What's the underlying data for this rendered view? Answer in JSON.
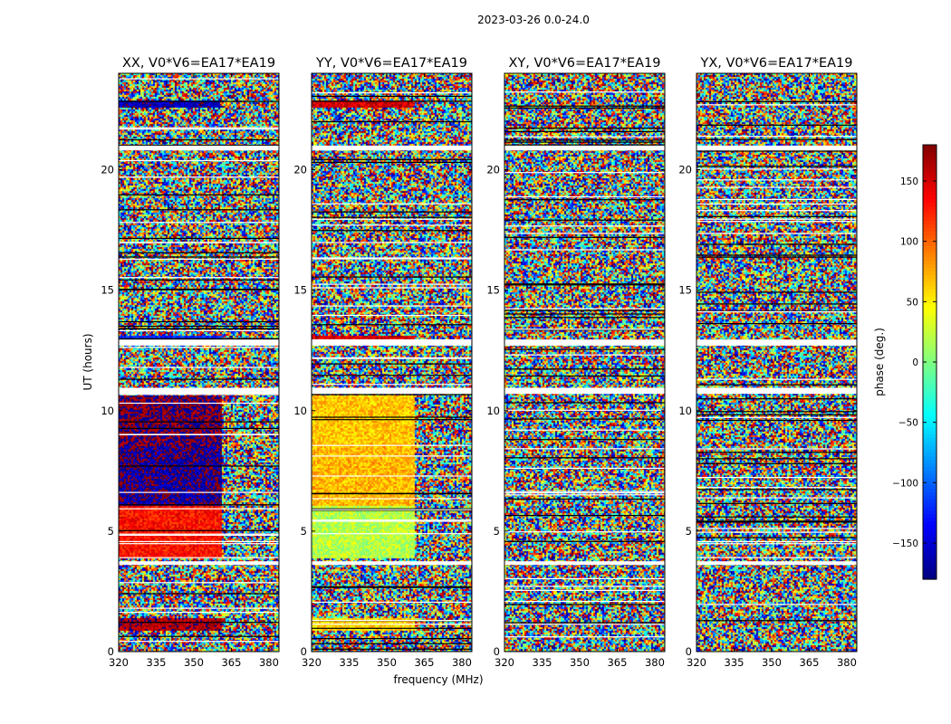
{
  "figure": {
    "suptitle": "2023-03-26 0.0-24.0",
    "xlabel": "frequency (MHz)",
    "ylabel": "UT (hours)",
    "colorbar_label": "phase (deg.)"
  },
  "chart_data": {
    "type": "heatmap",
    "x_ticks": [
      320,
      335,
      350,
      365,
      380
    ],
    "y_ticks": [
      0,
      5,
      10,
      15,
      20
    ],
    "xlim": [
      320,
      384
    ],
    "ylim": [
      0,
      24
    ],
    "colormap": "jet",
    "colorbar": {
      "range": [
        -180,
        180
      ],
      "ticks": [
        -150,
        -100,
        -50,
        0,
        50,
        100,
        150
      ],
      "tick_labels": [
        "−150",
        "−100",
        "−50",
        "0",
        "50",
        "100",
        "150"
      ]
    },
    "panels": [
      {
        "title": "XX, V0*V6=EA17*EA19",
        "coherent_bands": [
          {
            "y0": 0.9,
            "y1": 1.4,
            "x0": 320,
            "x1": 361,
            "phase": 165
          },
          {
            "y0": 3.9,
            "y1": 6.1,
            "x0": 320,
            "x1": 361,
            "phase": 130
          },
          {
            "y0": 6.1,
            "y1": 8.6,
            "x0": 320,
            "x1": 361,
            "phase": -170
          },
          {
            "y0": 8.6,
            "y1": 10.7,
            "x0": 320,
            "x1": 361,
            "phase": 178
          },
          {
            "y0": 12.95,
            "y1": 13.15,
            "x0": 320,
            "x1": 361,
            "phase": -120
          },
          {
            "y0": 22.6,
            "y1": 22.9,
            "x0": 320,
            "x1": 360,
            "phase": -160
          }
        ]
      },
      {
        "title": "YY, V0*V6=EA17*EA19",
        "coherent_bands": [
          {
            "y0": 0.9,
            "y1": 1.4,
            "x0": 320,
            "x1": 361,
            "phase": 60
          },
          {
            "y0": 3.9,
            "y1": 6.1,
            "x0": 320,
            "x1": 361,
            "phase": 20
          },
          {
            "y0": 6.1,
            "y1": 8.6,
            "x0": 320,
            "x1": 361,
            "phase": 70
          },
          {
            "y0": 8.6,
            "y1": 10.7,
            "x0": 320,
            "x1": 361,
            "phase": 65
          },
          {
            "y0": 12.95,
            "y1": 13.15,
            "x0": 320,
            "x1": 361,
            "phase": 150
          },
          {
            "y0": 22.6,
            "y1": 22.9,
            "x0": 320,
            "x1": 360,
            "phase": 150
          }
        ]
      },
      {
        "title": "XY, V0*V6=EA17*EA19",
        "coherent_bands": []
      },
      {
        "title": "YX, V0*V6=EA17*EA19",
        "coherent_bands": []
      }
    ],
    "flagged_rows": [
      [
        3.6,
        3.75
      ],
      [
        10.7,
        10.95
      ],
      [
        12.7,
        12.95
      ],
      [
        20.8,
        21.0
      ]
    ]
  }
}
